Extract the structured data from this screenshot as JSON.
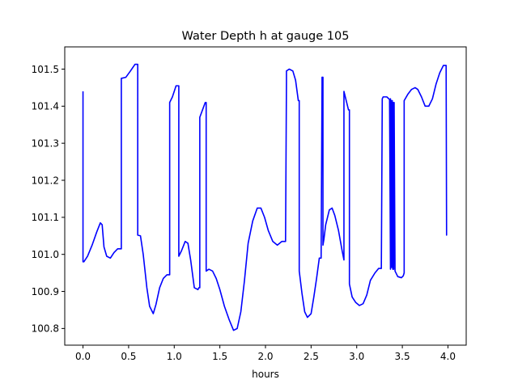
{
  "chart_data": {
    "type": "line",
    "title": "Water Depth h at gauge 105",
    "xlabel": "hours",
    "ylabel": "",
    "xlim": [
      -0.2,
      4.2
    ],
    "ylim": [
      100.755,
      101.56
    ],
    "xticks": [
      0.0,
      0.5,
      1.0,
      1.5,
      2.0,
      2.5,
      3.0,
      3.5,
      4.0
    ],
    "xtick_labels": [
      "0.0",
      "0.5",
      "1.0",
      "1.5",
      "2.0",
      "2.5",
      "3.0",
      "3.5",
      "4.0"
    ],
    "yticks": [
      100.8,
      100.9,
      101.0,
      101.1,
      101.2,
      101.3,
      101.4,
      101.5
    ],
    "ytick_labels": [
      "100.8",
      "100.9",
      "101.0",
      "101.1",
      "101.2",
      "101.3",
      "101.4",
      "101.5"
    ],
    "grid": false,
    "line_color": "#0000ff",
    "series": [
      {
        "name": "",
        "x": [
          0.0,
          0.0,
          0.01,
          0.05,
          0.1,
          0.15,
          0.19,
          0.21,
          0.23,
          0.26,
          0.3,
          0.34,
          0.38,
          0.4,
          0.42,
          0.42,
          0.47,
          0.52,
          0.57,
          0.6,
          0.6,
          0.63,
          0.66,
          0.7,
          0.73,
          0.77,
          0.8,
          0.84,
          0.88,
          0.92,
          0.95,
          0.95,
          0.98,
          1.02,
          1.05,
          1.05,
          1.08,
          1.12,
          1.15,
          1.18,
          1.22,
          1.26,
          1.27,
          1.28,
          1.28,
          1.31,
          1.34,
          1.35,
          1.35,
          1.38,
          1.42,
          1.46,
          1.5,
          1.55,
          1.6,
          1.65,
          1.69,
          1.73,
          1.77,
          1.81,
          1.86,
          1.91,
          1.95,
          1.99,
          2.03,
          2.08,
          2.13,
          2.18,
          2.22,
          2.23,
          2.23,
          2.26,
          2.3,
          2.33,
          2.36,
          2.37,
          2.37,
          2.4,
          2.43,
          2.46,
          2.5,
          2.53,
          2.56,
          2.59,
          2.61,
          2.62,
          2.62,
          2.63,
          2.63,
          2.63,
          2.64,
          2.66,
          2.7,
          2.73,
          2.76,
          2.8,
          2.84,
          2.86,
          2.86,
          2.88,
          2.91,
          2.92,
          2.92,
          2.95,
          2.99,
          3.03,
          3.07,
          3.11,
          3.15,
          3.2,
          3.24,
          3.27,
          3.28,
          3.29,
          3.33,
          3.36,
          3.37,
          3.37,
          3.375,
          3.38,
          3.385,
          3.39,
          3.395,
          3.4,
          3.405,
          3.41,
          3.42,
          3.45,
          3.49,
          3.51,
          3.52,
          3.52,
          3.56,
          3.6,
          3.64,
          3.67,
          3.71,
          3.75,
          3.79,
          3.83,
          3.87,
          3.91,
          3.95,
          3.98,
          3.985,
          3.99
        ],
        "y": [
          101.44,
          100.98,
          100.98,
          100.995,
          101.025,
          101.06,
          101.085,
          101.08,
          101.02,
          100.995,
          100.99,
          101.005,
          101.015,
          101.015,
          101.015,
          101.475,
          101.478,
          101.495,
          101.513,
          101.513,
          101.052,
          101.05,
          101.0,
          100.91,
          100.86,
          100.84,
          100.865,
          100.91,
          100.935,
          100.945,
          100.945,
          101.41,
          101.425,
          101.455,
          101.455,
          100.995,
          101.01,
          101.035,
          101.03,
          100.985,
          100.91,
          100.905,
          100.91,
          100.91,
          101.37,
          101.39,
          101.41,
          101.41,
          100.955,
          100.96,
          100.955,
          100.935,
          100.905,
          100.86,
          100.825,
          100.795,
          100.8,
          100.845,
          100.93,
          101.03,
          101.09,
          101.125,
          101.125,
          101.1,
          101.065,
          101.035,
          101.025,
          101.035,
          101.035,
          101.47,
          101.495,
          101.5,
          101.495,
          101.47,
          101.415,
          101.415,
          100.955,
          100.895,
          100.845,
          100.83,
          100.84,
          100.885,
          100.935,
          100.99,
          100.99,
          101.46,
          101.478,
          101.478,
          101.025,
          101.025,
          101.04,
          101.08,
          101.12,
          101.125,
          101.105,
          101.065,
          101.01,
          100.985,
          101.44,
          101.42,
          101.39,
          101.39,
          100.92,
          100.885,
          100.87,
          100.862,
          100.867,
          100.89,
          100.93,
          100.95,
          100.962,
          100.962,
          101.42,
          101.425,
          101.425,
          101.418,
          100.96,
          101.42,
          100.965,
          101.415,
          100.965,
          101.415,
          100.96,
          101.41,
          100.96,
          101.41,
          100.955,
          100.94,
          100.937,
          100.942,
          100.95,
          101.415,
          101.432,
          101.445,
          101.45,
          101.445,
          101.425,
          101.4,
          101.4,
          101.42,
          101.46,
          101.49,
          101.51,
          101.51,
          101.052,
          101.052
        ]
      }
    ]
  }
}
